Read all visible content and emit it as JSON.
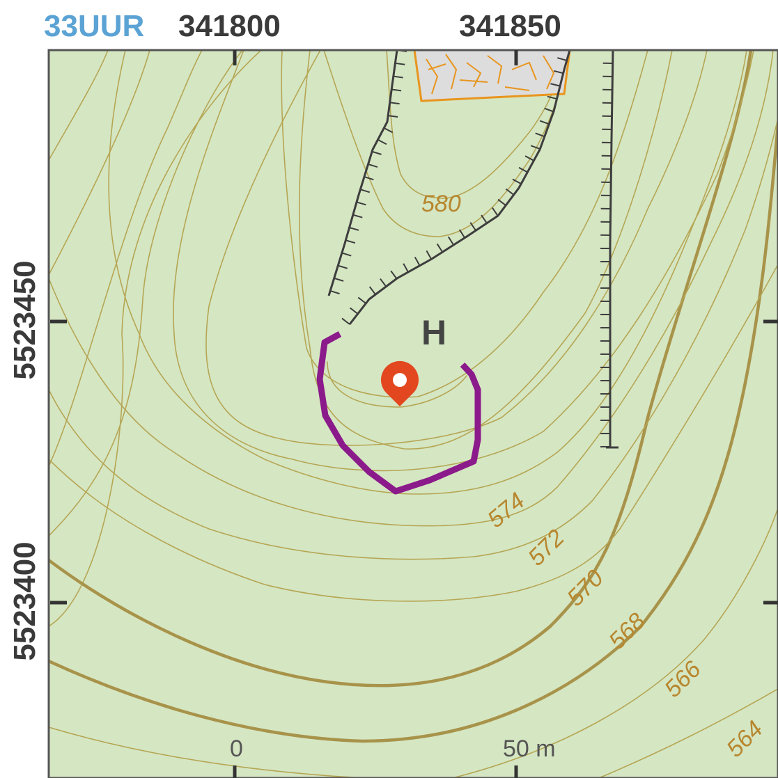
{
  "grid": {
    "zone": "33UUR",
    "easting_labels": [
      "341800",
      "341850"
    ],
    "northing_labels": [
      "5523450",
      "5523400"
    ]
  },
  "contours": {
    "labels": [
      "580",
      "574",
      "572",
      "570",
      "568",
      "566",
      "564"
    ],
    "label_color": "#b7872f",
    "line_color": "#b5a655",
    "index_line_color": "#a8934a"
  },
  "map": {
    "peak_label": "H",
    "background_color": "#d5e6c2",
    "marker_color": "#e2471f",
    "boundary_color": "#8b1a8b",
    "rock_fill_color": "#dddddd",
    "rock_outline_color": "#e8951e",
    "zone_label_color": "#5ba3d4"
  },
  "scale_bar": {
    "start_label": "0",
    "end_label": "50 m"
  }
}
